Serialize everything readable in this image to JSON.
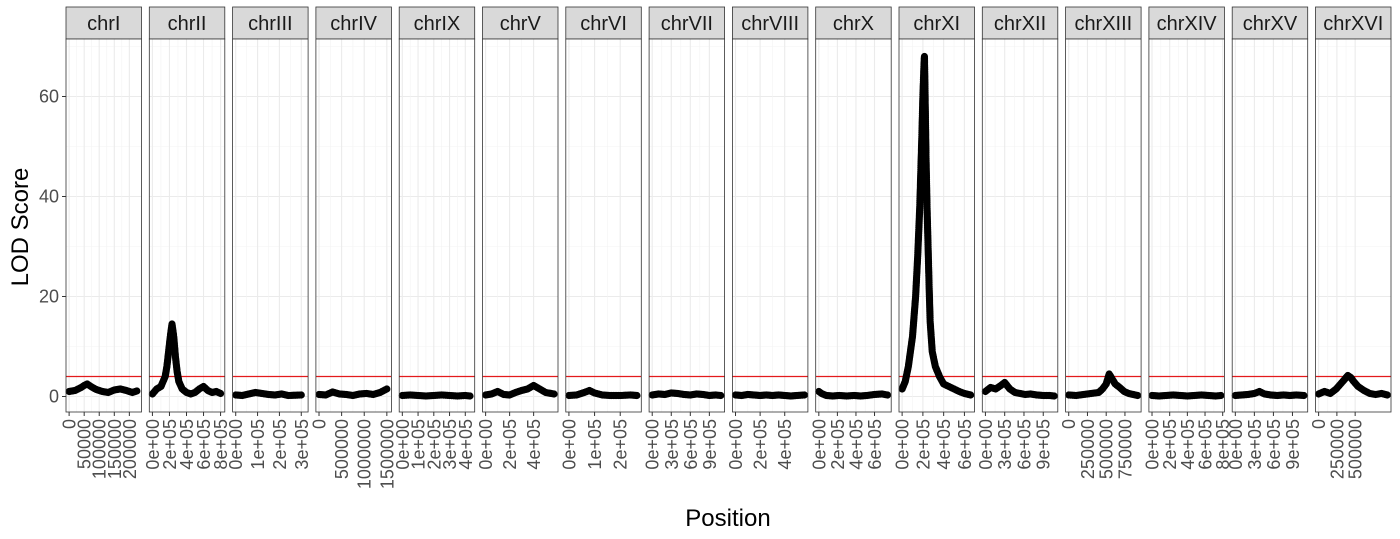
{
  "chart_data": {
    "type": "scatter",
    "xlabel": "Position",
    "ylabel": "LOD Score",
    "ylim": [
      0,
      72
    ],
    "y_ticks": [
      0,
      20,
      40,
      60
    ],
    "threshold": 4,
    "threshold_color": "#e31a1c",
    "point_color": "#000000",
    "strip_fill": "#d9d9d9",
    "facet_layout": "single row, free x scales",
    "panels": [
      {
        "name": "chrI",
        "xlim": [
          0,
          230000
        ],
        "x_ticks": [
          "0",
          "50000",
          "100000",
          "150000",
          "200000"
        ],
        "x_tick_vals": [
          0,
          50000,
          100000,
          150000,
          200000
        ],
        "points": [
          [
            0,
            1.0
          ],
          [
            20000,
            1.2
          ],
          [
            40000,
            1.8
          ],
          [
            50000,
            2.2
          ],
          [
            60000,
            2.5
          ],
          [
            75000,
            1.9
          ],
          [
            90000,
            1.4
          ],
          [
            110000,
            1.0
          ],
          [
            130000,
            0.8
          ],
          [
            150000,
            1.3
          ],
          [
            170000,
            1.5
          ],
          [
            190000,
            1.2
          ],
          [
            210000,
            0.8
          ],
          [
            225000,
            1.1
          ]
        ]
      },
      {
        "name": "chrII",
        "xlim": [
          0,
          813000
        ],
        "x_ticks": [
          "0e+00",
          "2e+05",
          "4e+05",
          "6e+05",
          "8e+05"
        ],
        "x_tick_vals": [
          0,
          200000,
          400000,
          600000,
          800000
        ],
        "points": [
          [
            0,
            0.5
          ],
          [
            50000,
            1.5
          ],
          [
            100000,
            2.0
          ],
          [
            150000,
            4.0
          ],
          [
            170000,
            6.0
          ],
          [
            190000,
            9.0
          ],
          [
            210000,
            12.0
          ],
          [
            230000,
            14.5
          ],
          [
            250000,
            12.0
          ],
          [
            270000,
            8.0
          ],
          [
            290000,
            5.0
          ],
          [
            310000,
            3.0
          ],
          [
            350000,
            1.5
          ],
          [
            400000,
            0.8
          ],
          [
            450000,
            0.5
          ],
          [
            500000,
            0.8
          ],
          [
            550000,
            1.5
          ],
          [
            600000,
            2.0
          ],
          [
            650000,
            1.2
          ],
          [
            700000,
            0.8
          ],
          [
            750000,
            1.0
          ],
          [
            800000,
            0.6
          ]
        ]
      },
      {
        "name": "chrIII",
        "xlim": [
          0,
          317000
        ],
        "x_ticks": [
          "0e+00",
          "1e+05",
          "2e+05",
          "3e+05"
        ],
        "x_tick_vals": [
          0,
          100000,
          200000,
          300000
        ],
        "points": [
          [
            0,
            0.3
          ],
          [
            30000,
            0.2
          ],
          [
            60000,
            0.5
          ],
          [
            90000,
            0.8
          ],
          [
            120000,
            0.6
          ],
          [
            150000,
            0.4
          ],
          [
            180000,
            0.3
          ],
          [
            210000,
            0.5
          ],
          [
            240000,
            0.2
          ],
          [
            300000,
            0.3
          ]
        ]
      },
      {
        "name": "chrIV",
        "xlim": [
          0,
          1532000
        ],
        "x_ticks": [
          "0",
          "500000",
          "1000000",
          "1500000"
        ],
        "x_tick_vals": [
          0,
          500000,
          1000000,
          1500000
        ],
        "points": [
          [
            0,
            0.4
          ],
          [
            150000,
            0.3
          ],
          [
            300000,
            0.9
          ],
          [
            450000,
            0.5
          ],
          [
            600000,
            0.4
          ],
          [
            750000,
            0.2
          ],
          [
            900000,
            0.5
          ],
          [
            1050000,
            0.6
          ],
          [
            1200000,
            0.4
          ],
          [
            1350000,
            0.8
          ],
          [
            1500000,
            1.5
          ]
        ]
      },
      {
        "name": "chrIX",
        "xlim": [
          0,
          440000
        ],
        "x_ticks": [
          "0e+00",
          "1e+05",
          "2e+05",
          "3e+05",
          "4e+05"
        ],
        "x_tick_vals": [
          0,
          100000,
          200000,
          300000,
          400000
        ],
        "points": [
          [
            0,
            0.2
          ],
          [
            50000,
            0.3
          ],
          [
            100000,
            0.2
          ],
          [
            150000,
            0.1
          ],
          [
            200000,
            0.2
          ],
          [
            250000,
            0.3
          ],
          [
            300000,
            0.2
          ],
          [
            350000,
            0.1
          ],
          [
            400000,
            0.2
          ],
          [
            430000,
            0.1
          ]
        ]
      },
      {
        "name": "chrV",
        "xlim": [
          0,
          577000
        ],
        "x_ticks": [
          "0e+00",
          "2e+05",
          "4e+05"
        ],
        "x_tick_vals": [
          0,
          200000,
          400000
        ],
        "points": [
          [
            0,
            0.3
          ],
          [
            50000,
            0.5
          ],
          [
            100000,
            1.0
          ],
          [
            150000,
            0.4
          ],
          [
            200000,
            0.3
          ],
          [
            250000,
            0.8
          ],
          [
            300000,
            1.2
          ],
          [
            350000,
            1.5
          ],
          [
            400000,
            2.2
          ],
          [
            450000,
            1.5
          ],
          [
            500000,
            0.8
          ],
          [
            570000,
            0.5
          ]
        ]
      },
      {
        "name": "chrVI",
        "xlim": [
          0,
          270000
        ],
        "x_ticks": [
          "0e+00",
          "1e+05",
          "2e+05"
        ],
        "x_tick_vals": [
          0,
          100000,
          200000
        ],
        "points": [
          [
            0,
            0.2
          ],
          [
            30000,
            0.3
          ],
          [
            60000,
            0.8
          ],
          [
            80000,
            1.2
          ],
          [
            100000,
            0.7
          ],
          [
            130000,
            0.3
          ],
          [
            160000,
            0.2
          ],
          [
            200000,
            0.2
          ],
          [
            240000,
            0.3
          ],
          [
            265000,
            0.2
          ]
        ]
      },
      {
        "name": "chrVII",
        "xlim": [
          0,
          1091000
        ],
        "x_ticks": [
          "0e+00",
          "3e+05",
          "6e+05",
          "9e+05"
        ],
        "x_tick_vals": [
          0,
          300000,
          600000,
          900000
        ],
        "points": [
          [
            0,
            0.3
          ],
          [
            100000,
            0.5
          ],
          [
            200000,
            0.4
          ],
          [
            300000,
            0.7
          ],
          [
            400000,
            0.6
          ],
          [
            500000,
            0.4
          ],
          [
            600000,
            0.3
          ],
          [
            700000,
            0.5
          ],
          [
            800000,
            0.4
          ],
          [
            900000,
            0.2
          ],
          [
            1000000,
            0.3
          ],
          [
            1080000,
            0.2
          ]
        ]
      },
      {
        "name": "chrVIII",
        "xlim": [
          0,
          563000
        ],
        "x_ticks": [
          "0e+00",
          "2e+05",
          "4e+05"
        ],
        "x_tick_vals": [
          0,
          200000,
          400000
        ],
        "points": [
          [
            0,
            0.3
          ],
          [
            50000,
            0.2
          ],
          [
            100000,
            0.4
          ],
          [
            150000,
            0.3
          ],
          [
            200000,
            0.2
          ],
          [
            250000,
            0.3
          ],
          [
            300000,
            0.2
          ],
          [
            350000,
            0.3
          ],
          [
            400000,
            0.2
          ],
          [
            450000,
            0.1
          ],
          [
            500000,
            0.2
          ],
          [
            560000,
            0.3
          ]
        ]
      },
      {
        "name": "chrX",
        "xlim": [
          0,
          746000
        ],
        "x_ticks": [
          "0e+00",
          "2e+05",
          "4e+05",
          "6e+05"
        ],
        "x_tick_vals": [
          0,
          200000,
          400000,
          600000
        ],
        "points": [
          [
            0,
            1.0
          ],
          [
            30000,
            0.6
          ],
          [
            80000,
            0.2
          ],
          [
            150000,
            0.1
          ],
          [
            220000,
            0.2
          ],
          [
            300000,
            0.1
          ],
          [
            380000,
            0.2
          ],
          [
            450000,
            0.1
          ],
          [
            520000,
            0.2
          ],
          [
            600000,
            0.4
          ],
          [
            680000,
            0.5
          ],
          [
            740000,
            0.3
          ]
        ]
      },
      {
        "name": "chrXI",
        "xlim": [
          0,
          667000
        ],
        "x_ticks": [
          "0e+00",
          "2e+05",
          "4e+05",
          "6e+05"
        ],
        "x_tick_vals": [
          0,
          200000,
          400000,
          600000
        ],
        "points": [
          [
            0,
            1.5
          ],
          [
            30000,
            3.0
          ],
          [
            60000,
            6.0
          ],
          [
            100000,
            12.0
          ],
          [
            130000,
            20.0
          ],
          [
            150000,
            28.0
          ],
          [
            170000,
            38.0
          ],
          [
            180000,
            45.0
          ],
          [
            190000,
            52.0
          ],
          [
            200000,
            60.0
          ],
          [
            210000,
            66.0
          ],
          [
            215000,
            68.0
          ],
          [
            220000,
            62.0
          ],
          [
            230000,
            48.0
          ],
          [
            240000,
            38.0
          ],
          [
            250000,
            30.0
          ],
          [
            260000,
            22.0
          ],
          [
            270000,
            15.0
          ],
          [
            290000,
            9.0
          ],
          [
            320000,
            6.0
          ],
          [
            360000,
            4.0
          ],
          [
            400000,
            2.5
          ],
          [
            450000,
            2.0
          ],
          [
            500000,
            1.5
          ],
          [
            550000,
            1.0
          ],
          [
            600000,
            0.6
          ],
          [
            660000,
            0.3
          ]
        ]
      },
      {
        "name": "chrXII",
        "xlim": [
          0,
          1078000
        ],
        "x_ticks": [
          "0e+00",
          "3e+05",
          "6e+05",
          "9e+05"
        ],
        "x_tick_vals": [
          0,
          300000,
          600000,
          900000
        ],
        "points": [
          [
            0,
            1.0
          ],
          [
            80000,
            1.8
          ],
          [
            160000,
            1.5
          ],
          [
            240000,
            2.2
          ],
          [
            300000,
            2.8
          ],
          [
            380000,
            1.5
          ],
          [
            460000,
            0.8
          ],
          [
            540000,
            0.6
          ],
          [
            620000,
            0.4
          ],
          [
            700000,
            0.5
          ],
          [
            800000,
            0.3
          ],
          [
            900000,
            0.2
          ],
          [
            1000000,
            0.2
          ],
          [
            1070000,
            0.1
          ]
        ]
      },
      {
        "name": "chrXIII",
        "xlim": [
          0,
          924000
        ],
        "x_ticks": [
          "0",
          "250000",
          "500000",
          "750000"
        ],
        "x_tick_vals": [
          0,
          250000,
          500000,
          750000
        ],
        "points": [
          [
            0,
            0.3
          ],
          [
            100000,
            0.2
          ],
          [
            200000,
            0.4
          ],
          [
            300000,
            0.6
          ],
          [
            400000,
            0.8
          ],
          [
            450000,
            1.5
          ],
          [
            500000,
            2.5
          ],
          [
            540000,
            4.5
          ],
          [
            580000,
            3.5
          ],
          [
            620000,
            2.5
          ],
          [
            680000,
            1.8
          ],
          [
            740000,
            1.0
          ],
          [
            800000,
            0.6
          ],
          [
            860000,
            0.4
          ],
          [
            920000,
            0.2
          ]
        ]
      },
      {
        "name": "chrXIV",
        "xlim": [
          0,
          784000
        ],
        "x_ticks": [
          "0e+00",
          "2e+05",
          "4e+05",
          "6e+05",
          "8e+05"
        ],
        "x_tick_vals": [
          0,
          200000,
          400000,
          600000,
          800000
        ],
        "points": [
          [
            0,
            0.2
          ],
          [
            80000,
            0.1
          ],
          [
            160000,
            0.2
          ],
          [
            240000,
            0.3
          ],
          [
            320000,
            0.2
          ],
          [
            400000,
            0.1
          ],
          [
            480000,
            0.2
          ],
          [
            560000,
            0.3
          ],
          [
            640000,
            0.2
          ],
          [
            720000,
            0.1
          ],
          [
            780000,
            0.2
          ]
        ]
      },
      {
        "name": "chrXV",
        "xlim": [
          0,
          1091000
        ],
        "x_ticks": [
          "0e+00",
          "3e+05",
          "6e+05",
          "9e+05"
        ],
        "x_tick_vals": [
          0,
          300000,
          600000,
          900000
        ],
        "points": [
          [
            0,
            0.2
          ],
          [
            100000,
            0.3
          ],
          [
            200000,
            0.4
          ],
          [
            300000,
            0.6
          ],
          [
            380000,
            1.0
          ],
          [
            460000,
            0.5
          ],
          [
            560000,
            0.3
          ],
          [
            660000,
            0.2
          ],
          [
            760000,
            0.3
          ],
          [
            860000,
            0.2
          ],
          [
            960000,
            0.3
          ],
          [
            1080000,
            0.2
          ]
        ]
      },
      {
        "name": "chrXVI",
        "xlim": [
          0,
          948000
        ],
        "x_ticks": [
          "0",
          "250000",
          "500000"
        ],
        "x_tick_vals": [
          0,
          250000,
          500000
        ],
        "points": [
          [
            0,
            0.5
          ],
          [
            80000,
            1.0
          ],
          [
            160000,
            0.6
          ],
          [
            240000,
            1.5
          ],
          [
            300000,
            2.5
          ],
          [
            360000,
            3.5
          ],
          [
            400000,
            4.2
          ],
          [
            440000,
            3.8
          ],
          [
            480000,
            3.0
          ],
          [
            540000,
            2.0
          ],
          [
            620000,
            1.2
          ],
          [
            700000,
            0.6
          ],
          [
            780000,
            0.4
          ],
          [
            860000,
            0.6
          ],
          [
            940000,
            0.3
          ]
        ]
      }
    ]
  }
}
